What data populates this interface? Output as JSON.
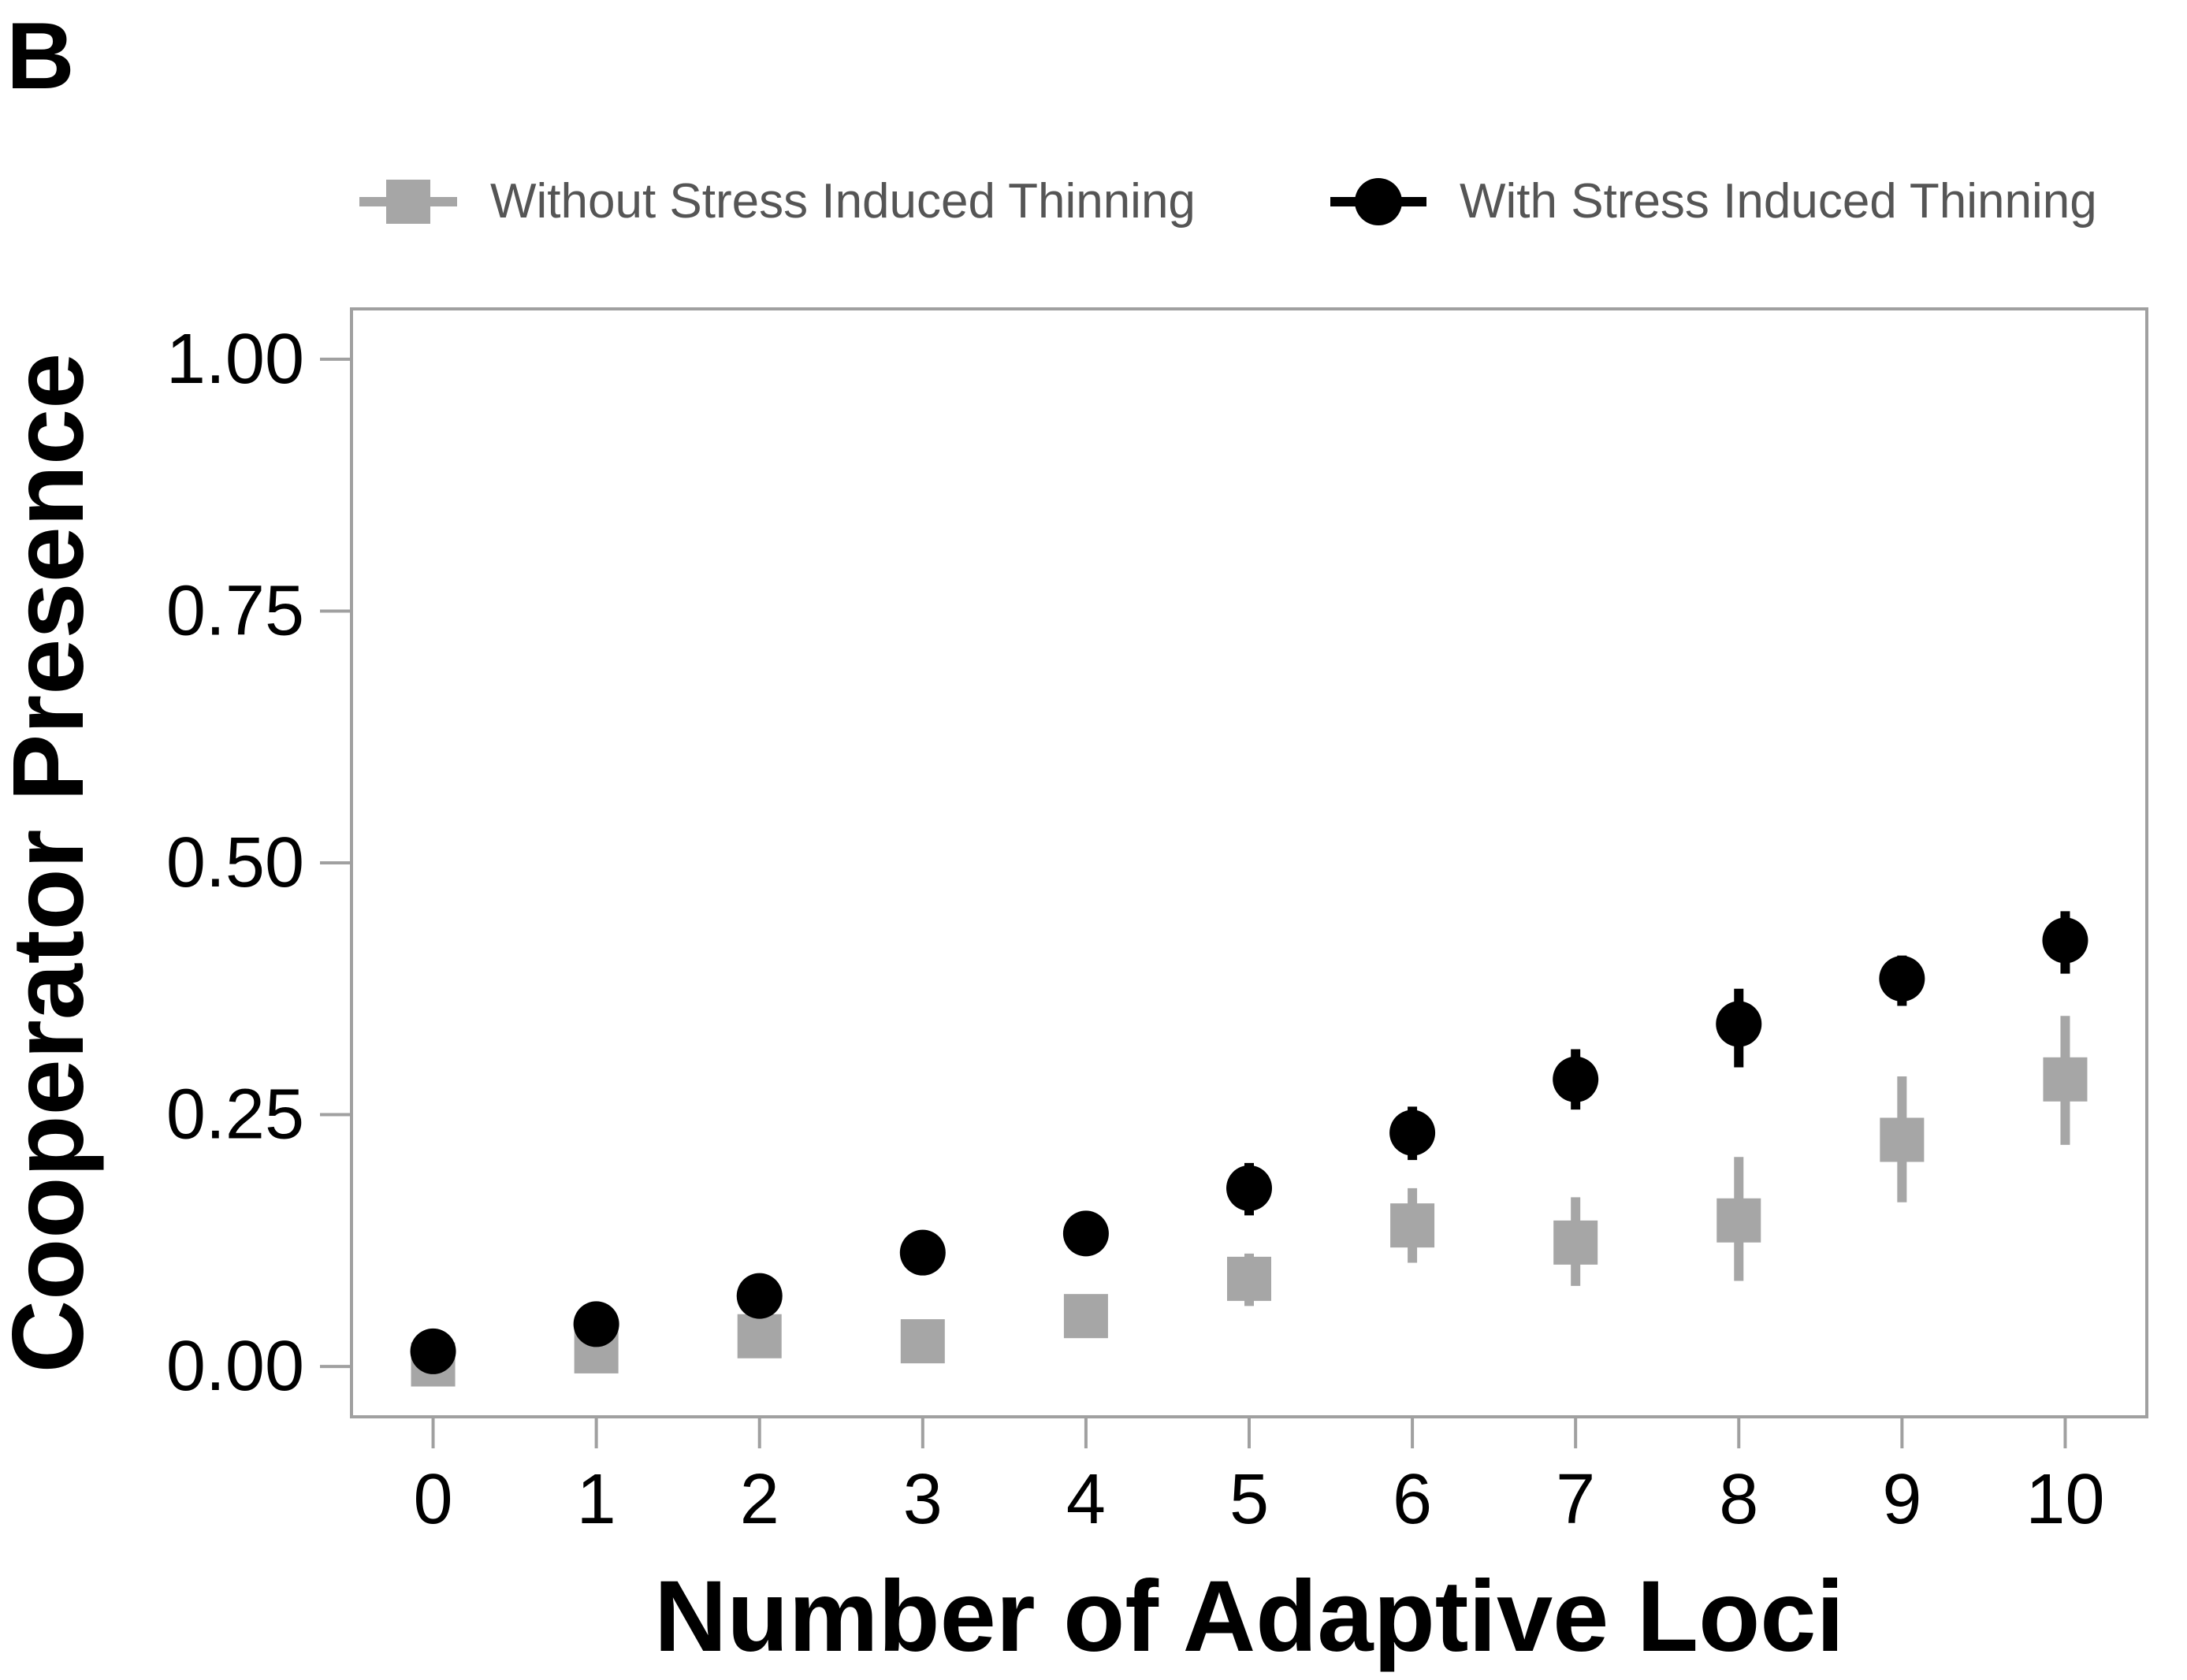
{
  "panel_label": "B",
  "chart_data": {
    "type": "scatter",
    "title": "",
    "xlabel": "Number of Adaptive Loci",
    "ylabel": "Cooperator Presence",
    "x": [
      0,
      1,
      2,
      3,
      4,
      5,
      6,
      7,
      8,
      9,
      10
    ],
    "xticks": [
      "0",
      "1",
      "2",
      "3",
      "4",
      "5",
      "6",
      "7",
      "8",
      "9",
      "10"
    ],
    "yticks": [
      "0.00",
      "0.25",
      "0.50",
      "0.75",
      "1.00"
    ],
    "ylim": [
      -0.05,
      1.05
    ],
    "xlim": [
      -0.5,
      10.5
    ],
    "grid": false,
    "legend_position": "top",
    "series": [
      {
        "name": "Without Stress Induced Thinning",
        "marker": "square",
        "color": "#a6a6a6",
        "values": [
          0.002,
          0.015,
          0.03,
          0.025,
          0.05,
          0.087,
          0.14,
          0.123,
          0.145,
          0.225,
          0.285
        ],
        "err_low": [
          0.0,
          0.01,
          0.02,
          0.018,
          0.04,
          0.06,
          0.103,
          0.08,
          0.085,
          0.163,
          0.22
        ],
        "err_high": [
          0.005,
          0.02,
          0.04,
          0.032,
          0.06,
          0.112,
          0.177,
          0.168,
          0.208,
          0.288,
          0.348
        ]
      },
      {
        "name": "With Stress Induced Thinning",
        "marker": "circle",
        "color": "#000000",
        "values": [
          0.015,
          0.042,
          0.07,
          0.113,
          0.132,
          0.177,
          0.232,
          0.285,
          0.34,
          0.385,
          0.423
        ],
        "err_low": [
          0.01,
          0.035,
          0.062,
          0.105,
          0.125,
          0.15,
          0.205,
          0.255,
          0.297,
          0.358,
          0.39
        ],
        "err_high": [
          0.02,
          0.049,
          0.078,
          0.121,
          0.139,
          0.202,
          0.258,
          0.315,
          0.375,
          0.408,
          0.452
        ]
      }
    ]
  }
}
